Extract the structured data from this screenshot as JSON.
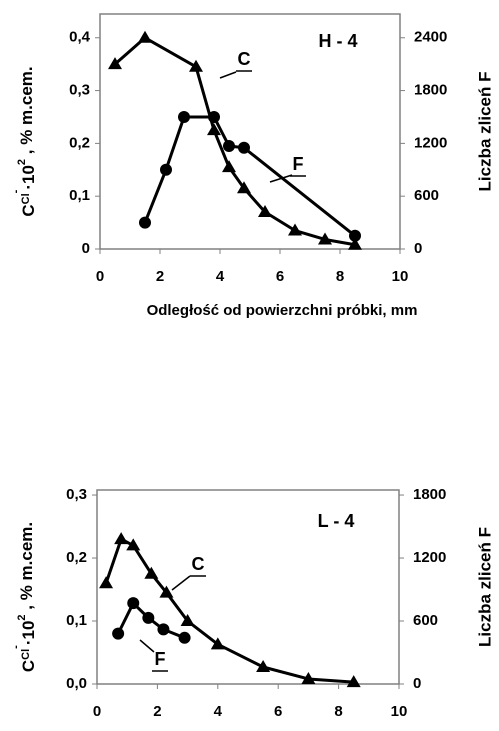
{
  "chart_data": [
    {
      "type": "line",
      "title": "H - 4",
      "xlabel": "Odległość od powierzchni próbki,  mm",
      "ylabel": [
        "C",
        "Cl",
        "-",
        "·10",
        "2",
        " , % m.cem."
      ],
      "y2label": "Liczba zliceń F",
      "xlim": [
        0,
        10
      ],
      "xticks": [
        0,
        2,
        4,
        6,
        8,
        10
      ],
      "ylim": [
        0,
        0.445
      ],
      "yticks": [
        {
          "value": 0,
          "label": "0"
        },
        {
          "value": 0.1,
          "label": "0,1"
        },
        {
          "value": 0.2,
          "label": "0,2"
        },
        {
          "value": 0.3,
          "label": "0,3"
        },
        {
          "value": 0.4,
          "label": "0,4"
        }
      ],
      "y2lim": [
        0,
        2670
      ],
      "y2ticks": [
        0,
        600,
        1200,
        1800,
        2400
      ],
      "series": [
        {
          "name": "C",
          "color": "#000000",
          "marker": "triangle",
          "x": [
            0.5,
            1.5,
            3.2,
            3.8,
            4.3,
            4.8,
            5.5,
            6.5,
            7.5,
            8.5
          ],
          "values": [
            0.35,
            0.4,
            0.345,
            0.225,
            0.155,
            0.115,
            0.07,
            0.035,
            0.018,
            0.008
          ]
        },
        {
          "name": "F",
          "color": "#000000",
          "marker": "circle",
          "axis": "y2",
          "x": [
            1.5,
            2.2,
            2.8,
            3.8,
            4.3,
            4.8,
            8.5
          ],
          "values": [
            300,
            900,
            1500,
            1500,
            1170,
            1150,
            150
          ]
        }
      ]
    },
    {
      "type": "line",
      "title": "L - 4",
      "xlabel": "Odległość od powierzchni próbki,  mm",
      "ylabel": [
        "C",
        "Cl",
        "-",
        "·10",
        "2",
        " , % m.cem."
      ],
      "y2label": "Liczba zliceń F",
      "xlim": [
        0,
        10
      ],
      "xticks": [
        0,
        2,
        4,
        6,
        8,
        10
      ],
      "ylim": [
        0,
        0.308
      ],
      "yticks": [
        {
          "value": 0,
          "label": "0,0"
        },
        {
          "value": 0.1,
          "label": "0,1"
        },
        {
          "value": 0.2,
          "label": "0,2"
        },
        {
          "value": 0.3,
          "label": "0,3"
        }
      ],
      "y2lim": [
        0,
        1848
      ],
      "y2ticks": [
        0,
        600,
        1200,
        1800
      ],
      "series": [
        {
          "name": "C",
          "color": "#000000",
          "marker": "triangle",
          "x": [
            0.3,
            0.8,
            1.2,
            1.8,
            2.3,
            3,
            4,
            5.5,
            7,
            8.5
          ],
          "values": [
            0.16,
            0.23,
            0.22,
            0.175,
            0.145,
            0.1,
            0.063,
            0.027,
            0.008,
            0.003
          ]
        },
        {
          "name": "F",
          "color": "#000000",
          "marker": "circle",
          "axis": "y2",
          "x": [
            0.7,
            1.2,
            1.7,
            2.2,
            2.9
          ],
          "values": [
            480,
            770,
            630,
            520,
            440
          ]
        }
      ]
    }
  ]
}
